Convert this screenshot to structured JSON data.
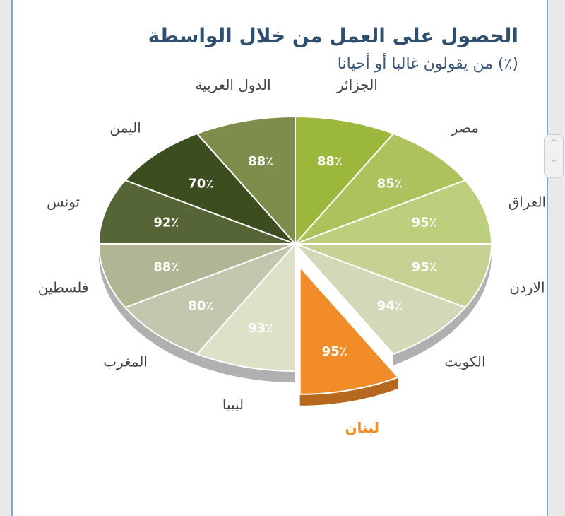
{
  "page": {
    "title": "الحصول على العمل من خلال الواسطة",
    "subtitle": "(٪) من يقولون غالبا أو أحيانا"
  },
  "chart_data": {
    "type": "pie",
    "title": "الحصول على العمل من خلال الواسطة",
    "subtitle": "(٪) من يقولون غالبا أو أحيانا",
    "categories": [
      "الجزائر",
      "مصر",
      "العراق",
      "الاردن",
      "الكويت",
      "لبنان",
      "ليبيا",
      "المغرب",
      "فلسطين",
      "تونس",
      "اليمن",
      "الدول العربية"
    ],
    "values": [
      88,
      85,
      95,
      95,
      94,
      95,
      93,
      80,
      88,
      92,
      70,
      88
    ],
    "value_labels": [
      "88٪",
      "85٪",
      "95٪",
      "95٪",
      "94٪",
      "95٪",
      "93٪",
      "80٪",
      "88٪",
      "92٪",
      "70٪",
      "88٪"
    ],
    "highlighted": "لبنان",
    "colors": [
      "#9cb83c",
      "#adc25c",
      "#bccf7c",
      "#c6d193",
      "#d3d8b8",
      "#f28c28",
      "#dee0c8",
      "#c4c6ad",
      "#b2b593",
      "#566536",
      "#3c4d20",
      "#7e8c4c"
    ],
    "label_colors": [
      "#444444",
      "#444444",
      "#444444",
      "#444444",
      "#444444",
      "#f28c28",
      "#444444",
      "#444444",
      "#444444",
      "#444444",
      "#444444",
      "#444444"
    ],
    "percent_note": "slices are drawn equal (12 sectors); values shown as labels"
  }
}
